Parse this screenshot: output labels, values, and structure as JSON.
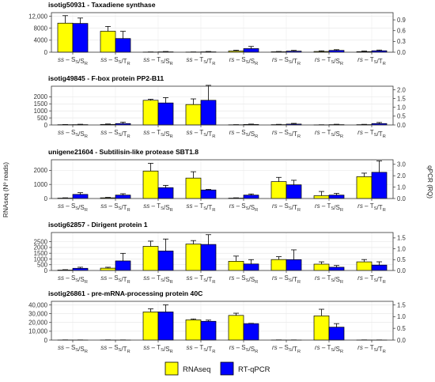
{
  "chart_data": {
    "type": "bar",
    "ylabel_left": "RNAseq (Nº reads)",
    "ylabel_right": "qPCR (RQ)",
    "categories": [
      {
        "pre": "ss",
        "a": "S",
        "b": "S"
      },
      {
        "pre": "ss",
        "a": "S",
        "b": "T"
      },
      {
        "pre": "ss",
        "a": "T",
        "b": "S"
      },
      {
        "pre": "ss",
        "a": "T",
        "b": "T"
      },
      {
        "pre": "rs",
        "a": "S",
        "b": "S"
      },
      {
        "pre": "rs",
        "a": "S",
        "b": "T"
      },
      {
        "pre": "rs",
        "a": "T",
        "b": "S"
      },
      {
        "pre": "rs",
        "a": "T",
        "b": "T"
      }
    ],
    "legend": {
      "position": "bottom",
      "items": [
        {
          "name": "RNAseq",
          "color": "#FFFF00"
        },
        {
          "name": "RT-qPCR",
          "color": "#0000FF"
        }
      ]
    },
    "grid": true,
    "panels": [
      {
        "title": "isotig50931 - Taxadiene synthase",
        "left_ylim": [
          0,
          13200
        ],
        "left_ticks": [
          0,
          4000,
          8000,
          12000
        ],
        "left_tick_labels": [
          "0",
          "4000",
          "8000",
          "12,000"
        ],
        "right_ylim": [
          0,
          1.1
        ],
        "right_ticks": [
          0,
          0.3,
          0.6,
          0.9
        ],
        "right_tick_labels": [
          "0.0",
          "0.3",
          "0.6",
          "0.9"
        ],
        "series": [
          {
            "name": "RNAseq",
            "axis": "left",
            "values": [
              9700,
              7000,
              60,
              60,
              400,
              150,
              250,
              200
            ],
            "errors": [
              2500,
              1600,
              40,
              40,
              250,
              100,
              200,
              180
            ]
          },
          {
            "name": "RT-qPCR",
            "axis": "right",
            "values": [
              0.8,
              0.38,
              0.01,
              0.01,
              0.1,
              0.03,
              0.05,
              0.04
            ],
            "errors": [
              0.15,
              0.2,
              0.01,
              0.01,
              0.06,
              0.02,
              0.02,
              0.02
            ]
          }
        ]
      },
      {
        "title": "isotig49845 - F-box protein PP2-B11",
        "left_ylim": [
          0,
          2750
        ],
        "left_ticks": [
          0,
          500,
          1000,
          1500,
          2000
        ],
        "left_tick_labels": [
          "0",
          "500",
          "1000",
          "1500",
          "2000"
        ],
        "right_ylim": [
          0,
          2.2
        ],
        "right_ticks": [
          0,
          0.5,
          1,
          1.5,
          2
        ],
        "right_tick_labels": [
          "0.0",
          "0.5",
          "1.0",
          "1.5",
          "2.0"
        ],
        "series": [
          {
            "name": "RNAseq",
            "axis": "left",
            "values": [
              20,
              40,
              1750,
              1450,
              15,
              25,
              10,
              25
            ],
            "errors": [
              15,
              30,
              70,
              400,
              10,
              20,
              8,
              20
            ]
          },
          {
            "name": "RT-qPCR",
            "axis": "right",
            "values": [
              0.02,
              0.08,
              1.25,
              1.4,
              0.03,
              0.05,
              0.02,
              0.08
            ],
            "errors": [
              0.02,
              0.08,
              0.3,
              0.85,
              0.02,
              0.04,
              0.02,
              0.06
            ]
          }
        ]
      },
      {
        "title": "unigene21604 - Subtilisin-like protease SBT1.8",
        "left_ylim": [
          0,
          2750
        ],
        "left_ticks": [
          0,
          1000,
          2000
        ],
        "left_tick_labels": [
          "0",
          "1000",
          "2000"
        ],
        "right_ylim": [
          0,
          3.4
        ],
        "right_ticks": [
          0,
          1,
          2,
          3
        ],
        "right_tick_labels": [
          "0.0",
          "1.0",
          "2.0",
          "3.0"
        ],
        "series": [
          {
            "name": "RNAseq",
            "axis": "left",
            "values": [
              30,
              50,
              1950,
              1450,
              30,
              1200,
              200,
              1550
            ],
            "errors": [
              20,
              30,
              550,
              450,
              20,
              300,
              300,
              250
            ]
          },
          {
            "name": "RT-qPCR",
            "axis": "right",
            "values": [
              0.36,
              0.3,
              0.95,
              0.75,
              0.3,
              1.2,
              0.3,
              2.3
            ],
            "errors": [
              0.15,
              0.12,
              0.2,
              0.05,
              0.1,
              0.4,
              0.15,
              1.0
            ]
          }
        ]
      },
      {
        "title": "isotig62857 - Dirigent protein 1",
        "left_ylim": [
          0,
          3300
        ],
        "left_ticks": [
          0,
          500,
          1000,
          1500,
          2000,
          2500
        ],
        "left_tick_labels": [
          "0",
          "500",
          "1000",
          "1500",
          "2000",
          "2500"
        ],
        "right_ylim": [
          0,
          1.75
        ],
        "right_ticks": [
          0,
          0.5,
          1,
          1.5
        ],
        "right_tick_labels": [
          "0.0",
          "0.5",
          "1.0",
          "1.5"
        ],
        "series": [
          {
            "name": "RNAseq",
            "axis": "left",
            "values": [
              40,
              200,
              2100,
              2300,
              800,
              950,
              550,
              750
            ],
            "errors": [
              30,
              80,
              450,
              300,
              450,
              250,
              200,
              200
            ]
          },
          {
            "name": "RT-qPCR",
            "axis": "right",
            "values": [
              0.1,
              0.44,
              0.9,
              1.2,
              0.3,
              0.5,
              0.15,
              0.25
            ],
            "errors": [
              0.05,
              0.35,
              0.55,
              0.45,
              0.2,
              0.45,
              0.08,
              0.15
            ]
          }
        ]
      },
      {
        "title": "isotig26861 - pre-mRNA-processing protein 40C",
        "left_ylim": [
          0,
          44000
        ],
        "left_ticks": [
          0,
          10000,
          20000,
          30000,
          40000
        ],
        "left_tick_labels": [
          "0",
          "10,000",
          "20,000",
          "30,000",
          "40,000"
        ],
        "right_ylim": [
          0,
          1.65
        ],
        "right_ticks": [
          0,
          0.5,
          1,
          1.5
        ],
        "right_tick_labels": [
          "0.0",
          "0.5",
          "1.0",
          "1.5"
        ],
        "series": [
          {
            "name": "RNAseq",
            "axis": "left",
            "values": [
              150,
              150,
              32000,
              23000,
              28000,
              150,
              27500,
              150
            ],
            "errors": [
              100,
              100,
              3500,
              1000,
              2500,
              100,
              7500,
              100
            ]
          },
          {
            "name": "RT-qPCR",
            "axis": "right",
            "values": [
              0.005,
              0.005,
              1.2,
              0.8,
              0.7,
              0.005,
              0.55,
              0.005
            ],
            "errors": [
              0.003,
              0.003,
              0.3,
              0.05,
              0.01,
              0.003,
              0.15,
              0.003
            ]
          }
        ]
      }
    ]
  }
}
